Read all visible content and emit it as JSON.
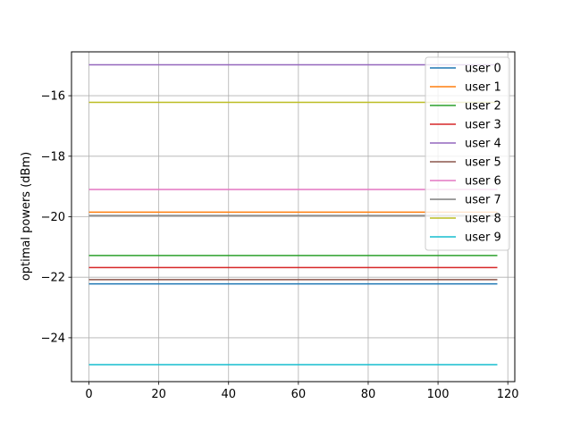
{
  "chart_data": {
    "type": "line",
    "title": "",
    "xlabel": "",
    "ylabel": "optimal powers (dBm)",
    "xlim": [
      -5,
      122
    ],
    "ylim": [
      -25.45,
      -14.55
    ],
    "xticks": [
      0,
      20,
      40,
      60,
      80,
      100,
      120
    ],
    "xtick_labels": [
      "0",
      "20",
      "40",
      "60",
      "80",
      "100",
      "120"
    ],
    "yticks": [
      -24,
      -22,
      -20,
      -18,
      -16
    ],
    "ytick_labels": [
      "−24",
      "−22",
      "−20",
      "−18",
      "−16"
    ],
    "grid": true,
    "legend_position": "top-right",
    "x": [
      0,
      117
    ],
    "series": [
      {
        "name": "user 0",
        "color": "#1f77b4",
        "values": [
          -22.22,
          -22.22
        ]
      },
      {
        "name": "user 1",
        "color": "#ff7f0e",
        "values": [
          -19.85,
          -19.85
        ]
      },
      {
        "name": "user 2",
        "color": "#2ca02c",
        "values": [
          -21.28,
          -21.28
        ]
      },
      {
        "name": "user 3",
        "color": "#d62728",
        "values": [
          -21.68,
          -21.68
        ]
      },
      {
        "name": "user 4",
        "color": "#9467bd",
        "values": [
          -14.98,
          -14.98
        ]
      },
      {
        "name": "user 5",
        "color": "#8c564b",
        "values": [
          -22.08,
          -22.08
        ]
      },
      {
        "name": "user 6",
        "color": "#e377c2",
        "values": [
          -19.1,
          -19.1
        ]
      },
      {
        "name": "user 7",
        "color": "#7f7f7f",
        "values": [
          -19.96,
          -19.96
        ]
      },
      {
        "name": "user 8",
        "color": "#bcbd22",
        "values": [
          -16.22,
          -16.22
        ]
      },
      {
        "name": "user 9",
        "color": "#17becf",
        "values": [
          -24.89,
          -24.89
        ]
      }
    ]
  }
}
